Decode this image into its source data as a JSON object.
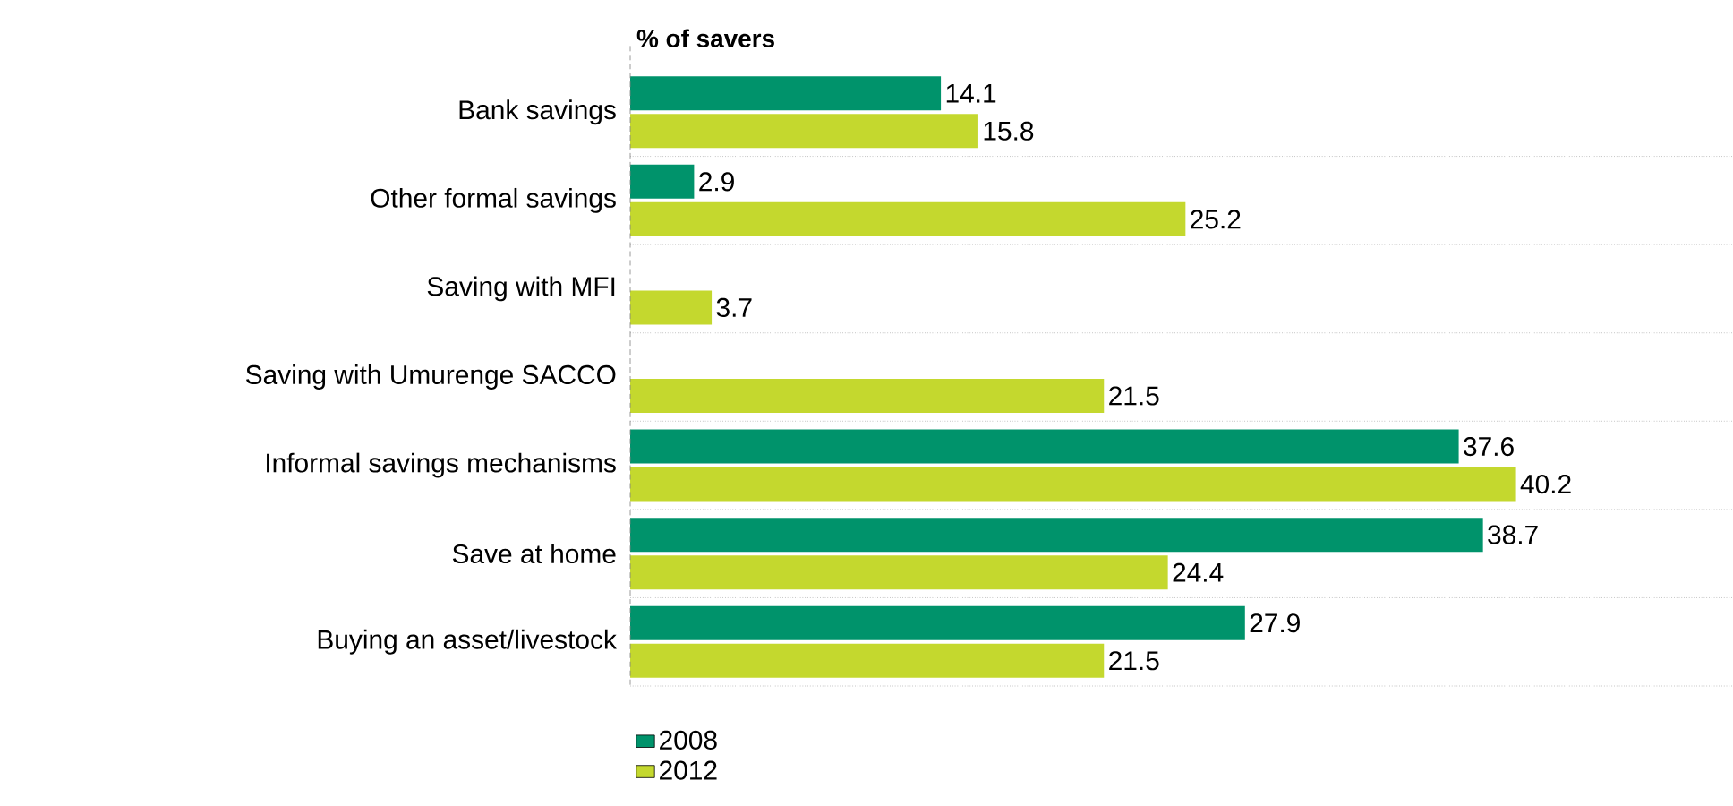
{
  "chart_data": {
    "type": "bar",
    "orientation": "horizontal",
    "title": "% of savers",
    "categories": [
      "Bank savings",
      "Other formal savings",
      "Saving with MFI",
      "Saving with Umurenge SACCO",
      "Informal savings mechanisms",
      "Save at home",
      "Buying an asset/livestock"
    ],
    "series": [
      {
        "name": "2008",
        "color": "#00936b",
        "values": [
          14.1,
          2.9,
          null,
          null,
          37.6,
          38.7,
          27.9
        ]
      },
      {
        "name": "2012",
        "color": "#c4d82e",
        "values": [
          15.8,
          25.2,
          3.7,
          21.5,
          40.2,
          24.4,
          21.5
        ]
      }
    ],
    "data_labels": true,
    "grid": "y",
    "legend": "bottom"
  }
}
